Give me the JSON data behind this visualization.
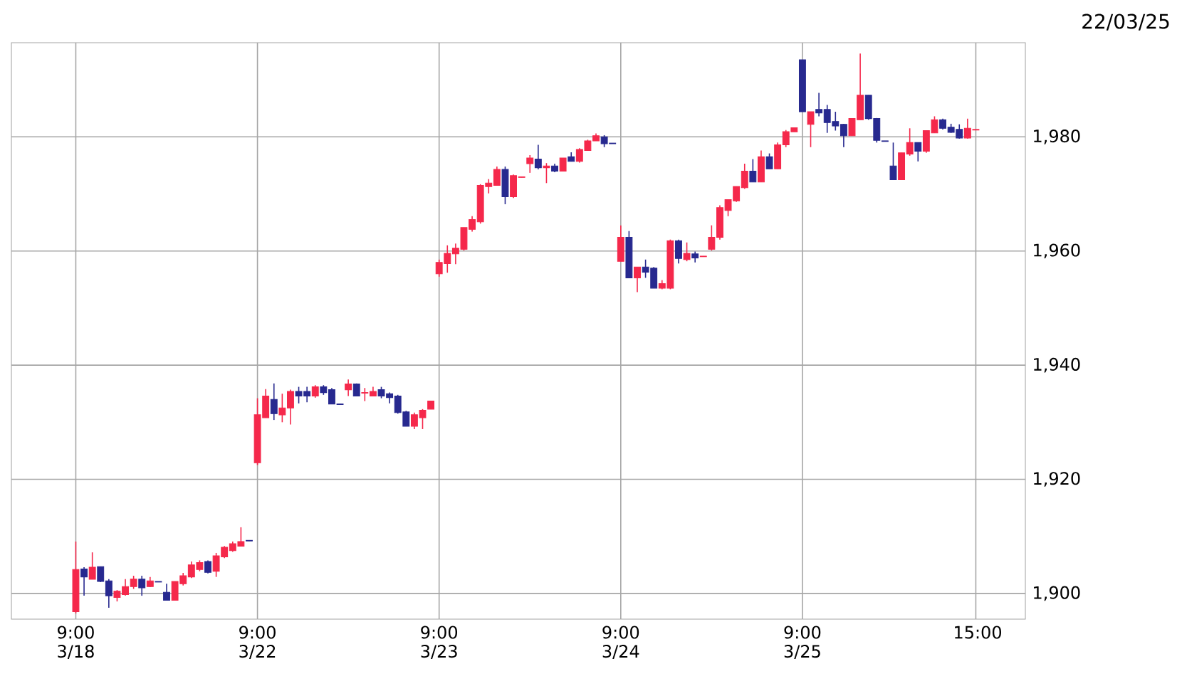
{
  "chart_data": {
    "type": "candlestick",
    "categories": [
      "9:00 3/18",
      null,
      null,
      null,
      null,
      null,
      null,
      null,
      null,
      null,
      null,
      null,
      null,
      null,
      null,
      null,
      null,
      null,
      null,
      null,
      null,
      null,
      "9:00 3/22",
      null,
      null,
      null,
      null,
      null,
      null,
      null,
      null,
      null,
      null,
      null,
      null,
      null,
      null,
      null,
      null,
      null,
      null,
      null,
      null,
      null,
      "9:00 3/23",
      null,
      null,
      null,
      null,
      null,
      null,
      null,
      null,
      null,
      null,
      null,
      null,
      null,
      null,
      null,
      null,
      null,
      null,
      null,
      null,
      null,
      "9:00 3/24",
      null,
      null,
      null,
      null,
      null,
      null,
      null,
      null,
      null,
      null,
      null,
      null,
      null,
      null,
      null,
      null,
      null,
      null,
      null,
      null,
      null,
      "9:00 3/25",
      null,
      null,
      null,
      null,
      null,
      null,
      null,
      null,
      null,
      null,
      null,
      null,
      null,
      null,
      null,
      null,
      null,
      null,
      null,
      null,
      "15:00"
    ],
    "ohlc": [
      [
        1896.8,
        1909.1,
        1896.5,
        1904.2
      ],
      [
        1904.3,
        1904.6,
        1899.6,
        1902.9
      ],
      [
        1902.5,
        1907.2,
        1902.5,
        1904.6
      ],
      [
        1904.7,
        1904.7,
        1902.0,
        1902.1
      ],
      [
        1902.2,
        1902.5,
        1897.5,
        1899.6
      ],
      [
        1899.3,
        1900.6,
        1898.6,
        1900.4
      ],
      [
        1899.8,
        1902.5,
        1899.6,
        1901.2
      ],
      [
        1901.2,
        1903.1,
        1900.8,
        1902.5
      ],
      [
        1902.5,
        1903.1,
        1899.6,
        1901.0
      ],
      [
        1901.2,
        1902.9,
        1901.1,
        1902.2
      ],
      [
        1902.1,
        1902.1,
        1902.0,
        1902.0
      ],
      [
        1900.2,
        1901.7,
        1898.8,
        1898.8
      ],
      [
        1898.8,
        1902.1,
        1898.8,
        1902.1
      ],
      [
        1901.7,
        1903.6,
        1901.4,
        1903.1
      ],
      [
        1902.9,
        1905.6,
        1902.7,
        1905.0
      ],
      [
        1904.2,
        1905.8,
        1903.9,
        1905.4
      ],
      [
        1905.6,
        1905.8,
        1903.5,
        1903.7
      ],
      [
        1903.9,
        1907.1,
        1902.9,
        1906.6
      ],
      [
        1906.4,
        1908.3,
        1906.2,
        1908.1
      ],
      [
        1907.5,
        1909.1,
        1907.3,
        1908.7
      ],
      [
        1908.3,
        1911.6,
        1908.3,
        1909.1
      ],
      [
        1909.3,
        1909.3,
        1909.2,
        1909.2
      ],
      [
        1922.9,
        1934.2,
        1922.5,
        1931.3
      ],
      [
        1930.8,
        1935.8,
        1930.8,
        1934.6
      ],
      [
        1934.0,
        1936.8,
        1930.4,
        1931.5
      ],
      [
        1931.3,
        1935.0,
        1930.0,
        1932.5
      ],
      [
        1932.5,
        1935.7,
        1929.6,
        1935.4
      ],
      [
        1935.4,
        1936.2,
        1933.3,
        1934.6
      ],
      [
        1935.4,
        1936.2,
        1933.5,
        1934.6
      ],
      [
        1934.6,
        1936.5,
        1934.3,
        1936.2
      ],
      [
        1936.2,
        1936.5,
        1934.8,
        1935.2
      ],
      [
        1935.7,
        1936.0,
        1933.2,
        1933.2
      ],
      [
        1933.2,
        1933.2,
        1933.1,
        1933.1
      ],
      [
        1935.7,
        1937.5,
        1934.6,
        1936.7
      ],
      [
        1936.7,
        1936.8,
        1934.6,
        1934.6
      ],
      [
        1935.1,
        1936.0,
        1933.7,
        1935.2
      ],
      [
        1934.6,
        1936.2,
        1934.6,
        1935.4
      ],
      [
        1935.7,
        1936.2,
        1934.2,
        1934.6
      ],
      [
        1935.0,
        1935.2,
        1933.3,
        1934.3
      ],
      [
        1934.6,
        1934.8,
        1931.5,
        1931.7
      ],
      [
        1931.8,
        1932.0,
        1929.3,
        1929.3
      ],
      [
        1929.3,
        1931.7,
        1928.8,
        1931.3
      ],
      [
        1930.8,
        1932.3,
        1928.8,
        1932.1
      ],
      [
        1932.3,
        1933.7,
        1932.3,
        1933.7
      ],
      [
        1956.0,
        1958.5,
        1955.5,
        1958.0
      ],
      [
        1957.8,
        1961.0,
        1956.2,
        1959.6
      ],
      [
        1959.5,
        1961.3,
        1957.7,
        1960.5
      ],
      [
        1960.3,
        1964.1,
        1960.1,
        1964.1
      ],
      [
        1963.8,
        1966.1,
        1963.4,
        1965.5
      ],
      [
        1965.1,
        1971.7,
        1964.8,
        1971.5
      ],
      [
        1971.3,
        1972.6,
        1970.1,
        1971.9
      ],
      [
        1971.5,
        1974.8,
        1971.5,
        1974.3
      ],
      [
        1974.3,
        1974.8,
        1968.2,
        1969.5
      ],
      [
        1969.5,
        1973.4,
        1969.3,
        1973.2
      ],
      [
        1972.9,
        1973.0,
        1972.9,
        1973.0
      ],
      [
        1975.3,
        1976.8,
        1973.7,
        1976.3
      ],
      [
        1976.1,
        1978.6,
        1974.3,
        1974.6
      ],
      [
        1974.6,
        1975.4,
        1971.9,
        1974.9
      ],
      [
        1974.9,
        1975.3,
        1973.8,
        1974.0
      ],
      [
        1974.0,
        1976.3,
        1974.0,
        1976.3
      ],
      [
        1976.5,
        1977.3,
        1975.7,
        1975.7
      ],
      [
        1975.7,
        1978.0,
        1975.5,
        1977.8
      ],
      [
        1977.6,
        1979.5,
        1977.6,
        1979.3
      ],
      [
        1979.3,
        1980.6,
        1979.3,
        1980.2
      ],
      [
        1980.0,
        1980.3,
        1978.2,
        1978.8
      ],
      [
        1978.9,
        1978.9,
        1978.8,
        1978.8
      ],
      [
        1958.2,
        1964.5,
        1958.2,
        1962.4
      ],
      [
        1962.4,
        1963.5,
        1955.3,
        1955.3
      ],
      [
        1955.3,
        1957.2,
        1952.8,
        1957.2
      ],
      [
        1957.2,
        1958.5,
        1955.3,
        1956.3
      ],
      [
        1957.0,
        1957.2,
        1953.5,
        1953.5
      ],
      [
        1953.5,
        1954.9,
        1953.3,
        1954.3
      ],
      [
        1953.5,
        1962.0,
        1953.3,
        1961.8
      ],
      [
        1961.8,
        1962.0,
        1957.8,
        1958.7
      ],
      [
        1958.5,
        1961.5,
        1958.2,
        1959.6
      ],
      [
        1959.5,
        1959.9,
        1958.0,
        1958.8
      ],
      [
        1959.0,
        1959.1,
        1959.0,
        1959.1
      ],
      [
        1960.3,
        1964.5,
        1960.1,
        1962.4
      ],
      [
        1962.4,
        1968.0,
        1962.0,
        1967.6
      ],
      [
        1967.1,
        1969.0,
        1966.1,
        1969.0
      ],
      [
        1968.8,
        1971.3,
        1968.6,
        1971.3
      ],
      [
        1971.1,
        1975.3,
        1970.9,
        1974.0
      ],
      [
        1974.0,
        1976.1,
        1972.1,
        1972.1
      ],
      [
        1972.1,
        1977.6,
        1972.1,
        1976.5
      ],
      [
        1976.5,
        1977.1,
        1974.4,
        1974.4
      ],
      [
        1974.4,
        1979.0,
        1974.4,
        1978.6
      ],
      [
        1978.6,
        1981.2,
        1978.2,
        1980.9
      ],
      [
        1980.9,
        1981.6,
        1980.9,
        1981.6
      ],
      [
        1993.5,
        1993.5,
        1984.4,
        1984.4
      ],
      [
        1982.2,
        1984.4,
        1978.2,
        1984.4
      ],
      [
        1984.8,
        1987.7,
        1983.6,
        1984.2
      ],
      [
        1984.8,
        1985.6,
        1980.7,
        1982.5
      ],
      [
        1982.7,
        1984.4,
        1981.1,
        1981.9
      ],
      [
        1982.2,
        1982.3,
        1978.2,
        1980.2
      ],
      [
        1980.2,
        1983.2,
        1980.2,
        1983.2
      ],
      [
        1983.0,
        1994.6,
        1983.0,
        1987.3
      ],
      [
        1987.3,
        1987.3,
        1983.0,
        1983.2
      ],
      [
        1983.2,
        1983.3,
        1979.0,
        1979.4
      ],
      [
        1979.3,
        1979.3,
        1979.2,
        1979.2
      ],
      [
        1974.9,
        1979.0,
        1972.5,
        1972.5
      ],
      [
        1972.5,
        1977.2,
        1972.5,
        1977.2
      ],
      [
        1977.0,
        1981.5,
        1976.7,
        1979.0
      ],
      [
        1979.0,
        1979.0,
        1975.7,
        1977.5
      ],
      [
        1977.5,
        1981.1,
        1977.2,
        1981.1
      ],
      [
        1980.7,
        1983.6,
        1980.7,
        1983.0
      ],
      [
        1983.0,
        1983.2,
        1981.3,
        1981.5
      ],
      [
        1981.7,
        1982.3,
        1980.7,
        1980.8
      ],
      [
        1981.3,
        1982.2,
        1979.7,
        1979.8
      ],
      [
        1979.8,
        1983.2,
        1979.7,
        1981.5
      ],
      [
        1981.2,
        1981.3,
        1981.2,
        1981.3
      ]
    ],
    "colors": [
      "#f5284b",
      "#27298f",
      "#f5284b",
      "#27298f",
      "#27298f",
      "#f5284b",
      "#f5284b",
      "#f5284b",
      "#27298f",
      "#f5284b",
      "#27298f",
      "#27298f",
      "#f5284b",
      "#f5284b",
      "#f5284b",
      "#f5284b",
      "#27298f",
      "#f5284b",
      "#f5284b",
      "#f5284b",
      "#f5284b",
      "#27298f",
      "#f5284b",
      "#f5284b",
      "#27298f",
      "#f5284b",
      "#f5284b",
      "#27298f",
      "#27298f",
      "#f5284b",
      "#27298f",
      "#27298f",
      "#27298f",
      "#f5284b",
      "#27298f",
      "#f5284b",
      "#f5284b",
      "#27298f",
      "#27298f",
      "#27298f",
      "#27298f",
      "#f5284b",
      "#f5284b",
      "#f5284b",
      "#f5284b",
      "#f5284b",
      "#f5284b",
      "#f5284b",
      "#f5284b",
      "#f5284b",
      "#f5284b",
      "#f5284b",
      "#27298f",
      "#f5284b",
      "#f5284b",
      "#f5284b",
      "#27298f",
      "#f5284b",
      "#27298f",
      "#f5284b",
      "#27298f",
      "#f5284b",
      "#f5284b",
      "#f5284b",
      "#27298f",
      "#27298f",
      "#f5284b",
      "#27298f",
      "#f5284b",
      "#27298f",
      "#27298f",
      "#f5284b",
      "#f5284b",
      "#27298f",
      "#f5284b",
      "#27298f",
      "#f5284b",
      "#f5284b",
      "#f5284b",
      "#f5284b",
      "#f5284b",
      "#f5284b",
      "#27298f",
      "#f5284b",
      "#27298f",
      "#f5284b",
      "#f5284b",
      "#f5284b",
      "#27298f",
      "#f5284b",
      "#27298f",
      "#27298f",
      "#27298f",
      "#27298f",
      "#f5284b",
      "#f5284b",
      "#27298f",
      "#27298f",
      "#27298f",
      "#27298f",
      "#f5284b",
      "#f5284b",
      "#27298f",
      "#f5284b",
      "#f5284b",
      "#27298f",
      "#27298f",
      "#27298f",
      "#f5284b",
      "#f5284b"
    ],
    "ylim": [
      1895.5,
      1996.5
    ],
    "yticks": [
      {
        "value": 1900,
        "label": "1,900"
      },
      {
        "value": 1920,
        "label": "1,920"
      },
      {
        "value": 1940,
        "label": "1,940"
      },
      {
        "value": 1960,
        "label": "1,960"
      },
      {
        "value": 1980,
        "label": "1,980"
      }
    ],
    "grid": true,
    "annotations": [
      "22/03/25"
    ]
  }
}
